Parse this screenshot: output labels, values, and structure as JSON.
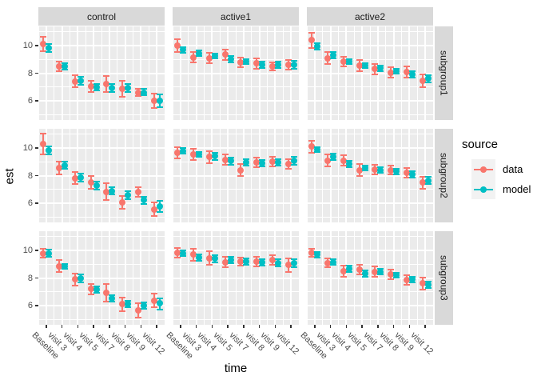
{
  "chart_data": {
    "type": "scatter",
    "title": "",
    "xlabel": "time",
    "ylabel": "est",
    "x_categories": [
      "Baseline",
      "visit 3",
      "visit 4",
      "visit 5",
      "visit 7",
      "visit 8",
      "visit 9",
      "visit 12"
    ],
    "y_ticks": [
      10,
      8,
      6
    ],
    "ylim": [
      4.6,
      11.4
    ],
    "grid": "on",
    "facet_cols": [
      "control",
      "active1",
      "active2"
    ],
    "facet_rows": [
      "subgroup1",
      "subgroup2",
      "subgroup3"
    ],
    "legend": {
      "title": "source",
      "position": "right",
      "items": [
        {
          "label": "data",
          "color": "#F8766D"
        },
        {
          "label": "model",
          "color": "#00BFC4"
        }
      ]
    },
    "colors": {
      "panel_background": "#EBEBEB",
      "strip_background": "#D9D9D9",
      "gridline": "#FFFFFF",
      "axis_text": "#4D4D4D"
    },
    "series_note": "each point is [estimate, ci_low, ci_high] with error bars",
    "panels": [
      {
        "row": "subgroup1",
        "col": "control",
        "data": [
          [
            10.1,
            9.55,
            10.7
          ],
          [
            8.5,
            8.1,
            8.9
          ],
          [
            7.4,
            6.9,
            7.9
          ],
          [
            7.05,
            6.6,
            7.5
          ],
          [
            7.2,
            6.6,
            7.85
          ],
          [
            6.85,
            6.2,
            7.5
          ],
          [
            6.6,
            6.3,
            6.9
          ],
          [
            6.0,
            5.4,
            6.6
          ]
        ],
        "model": [
          [
            9.85,
            9.5,
            10.2
          ],
          [
            8.5,
            8.2,
            8.8
          ],
          [
            7.45,
            7.1,
            7.8
          ],
          [
            7.0,
            6.7,
            7.3
          ],
          [
            6.95,
            6.6,
            7.3
          ],
          [
            6.9,
            6.6,
            7.25
          ],
          [
            6.6,
            6.35,
            6.9
          ],
          [
            6.0,
            5.5,
            6.5
          ]
        ]
      },
      {
        "row": "subgroup1",
        "col": "active1",
        "data": [
          [
            10.0,
            9.5,
            10.5
          ],
          [
            9.15,
            8.7,
            9.6
          ],
          [
            9.1,
            8.65,
            9.55
          ],
          [
            9.35,
            8.9,
            9.8
          ],
          [
            8.8,
            8.4,
            9.2
          ],
          [
            8.7,
            8.25,
            9.15
          ],
          [
            8.5,
            8.15,
            8.85
          ],
          [
            8.6,
            8.2,
            9.0
          ]
        ],
        "model": [
          [
            9.7,
            9.45,
            9.95
          ],
          [
            9.45,
            9.2,
            9.7
          ],
          [
            9.25,
            9.0,
            9.5
          ],
          [
            9.0,
            8.75,
            9.3
          ],
          [
            8.85,
            8.6,
            9.1
          ],
          [
            8.6,
            8.3,
            8.9
          ],
          [
            8.6,
            8.3,
            8.9
          ],
          [
            8.6,
            8.25,
            8.95
          ]
        ]
      },
      {
        "row": "subgroup1",
        "col": "active2",
        "data": [
          [
            10.4,
            9.8,
            11.0
          ],
          [
            9.1,
            8.6,
            9.6
          ],
          [
            8.85,
            8.45,
            9.25
          ],
          [
            8.55,
            8.1,
            9.0
          ],
          [
            8.3,
            7.85,
            8.75
          ],
          [
            8.05,
            7.6,
            8.5
          ],
          [
            8.1,
            7.65,
            8.55
          ],
          [
            7.45,
            6.95,
            7.95
          ]
        ],
        "model": [
          [
            9.95,
            9.65,
            10.25
          ],
          [
            9.3,
            9.0,
            9.6
          ],
          [
            8.85,
            8.6,
            9.1
          ],
          [
            8.55,
            8.3,
            8.8
          ],
          [
            8.35,
            8.1,
            8.6
          ],
          [
            8.15,
            7.9,
            8.4
          ],
          [
            7.9,
            7.6,
            8.2
          ],
          [
            7.6,
            7.3,
            7.9
          ]
        ]
      },
      {
        "row": "subgroup2",
        "col": "control",
        "data": [
          [
            10.3,
            9.5,
            11.1
          ],
          [
            8.55,
            8.05,
            9.05
          ],
          [
            7.8,
            7.35,
            8.3
          ],
          [
            7.5,
            7.0,
            8.05
          ],
          [
            6.8,
            6.15,
            7.5
          ],
          [
            6.05,
            5.55,
            6.55
          ],
          [
            6.8,
            6.4,
            7.2
          ],
          [
            5.55,
            5.0,
            6.1
          ]
        ],
        "model": [
          [
            9.85,
            9.5,
            10.2
          ],
          [
            8.75,
            8.45,
            9.05
          ],
          [
            7.85,
            7.5,
            8.2
          ],
          [
            7.25,
            6.95,
            7.6
          ],
          [
            6.85,
            6.55,
            7.2
          ],
          [
            6.55,
            6.25,
            6.9
          ],
          [
            6.2,
            5.9,
            6.5
          ],
          [
            5.75,
            5.3,
            6.2
          ]
        ]
      },
      {
        "row": "subgroup2",
        "col": "active1",
        "data": [
          [
            9.65,
            9.2,
            10.1
          ],
          [
            9.55,
            9.1,
            10.0
          ],
          [
            9.35,
            8.85,
            9.85
          ],
          [
            9.15,
            8.7,
            9.6
          ],
          [
            8.4,
            7.9,
            8.9
          ],
          [
            8.95,
            8.55,
            9.35
          ],
          [
            9.0,
            8.6,
            9.4
          ],
          [
            8.85,
            8.45,
            9.25
          ]
        ],
        "model": [
          [
            9.8,
            9.55,
            10.05
          ],
          [
            9.55,
            9.3,
            9.8
          ],
          [
            9.4,
            9.1,
            9.7
          ],
          [
            9.05,
            8.75,
            9.35
          ],
          [
            8.95,
            8.65,
            9.25
          ],
          [
            8.9,
            8.6,
            9.2
          ],
          [
            8.95,
            8.65,
            9.25
          ],
          [
            9.05,
            8.7,
            9.4
          ]
        ]
      },
      {
        "row": "subgroup2",
        "col": "active2",
        "data": [
          [
            10.1,
            9.6,
            10.6
          ],
          [
            9.1,
            8.6,
            9.6
          ],
          [
            9.1,
            8.65,
            9.55
          ],
          [
            8.4,
            7.9,
            8.9
          ],
          [
            8.45,
            8.05,
            8.85
          ],
          [
            8.4,
            8.0,
            8.8
          ],
          [
            8.2,
            7.8,
            8.6
          ],
          [
            7.5,
            7.0,
            8.0
          ]
        ],
        "model": [
          [
            9.9,
            9.65,
            10.15
          ],
          [
            9.35,
            9.05,
            9.65
          ],
          [
            8.85,
            8.55,
            9.15
          ],
          [
            8.55,
            8.3,
            8.8
          ],
          [
            8.4,
            8.15,
            8.65
          ],
          [
            8.3,
            8.05,
            8.55
          ],
          [
            8.1,
            7.8,
            8.4
          ],
          [
            7.65,
            7.35,
            7.95
          ]
        ]
      },
      {
        "row": "subgroup3",
        "col": "control",
        "data": [
          [
            9.8,
            9.4,
            10.2
          ],
          [
            8.85,
            8.35,
            9.35
          ],
          [
            7.9,
            7.4,
            8.4
          ],
          [
            7.2,
            6.75,
            7.65
          ],
          [
            6.9,
            6.2,
            7.6
          ],
          [
            6.1,
            5.55,
            6.65
          ],
          [
            5.65,
            5.05,
            6.25
          ],
          [
            6.35,
            5.8,
            6.9
          ]
        ],
        "model": [
          [
            9.8,
            9.5,
            10.1
          ],
          [
            8.85,
            8.6,
            9.1
          ],
          [
            7.95,
            7.65,
            8.3
          ],
          [
            7.15,
            6.85,
            7.45
          ],
          [
            6.5,
            6.2,
            6.8
          ],
          [
            6.1,
            5.8,
            6.4
          ],
          [
            6.0,
            5.7,
            6.3
          ],
          [
            6.15,
            5.65,
            6.6
          ]
        ]
      },
      {
        "row": "subgroup3",
        "col": "active1",
        "data": [
          [
            9.85,
            9.45,
            10.25
          ],
          [
            9.7,
            9.2,
            10.2
          ],
          [
            9.45,
            8.9,
            10.0
          ],
          [
            9.15,
            8.7,
            9.6
          ],
          [
            9.2,
            8.85,
            9.55
          ],
          [
            9.2,
            8.8,
            9.6
          ],
          [
            9.3,
            8.9,
            9.7
          ],
          [
            8.95,
            8.4,
            9.5
          ]
        ],
        "model": [
          [
            9.8,
            9.55,
            10.05
          ],
          [
            9.5,
            9.2,
            9.8
          ],
          [
            9.4,
            9.1,
            9.7
          ],
          [
            9.3,
            9.0,
            9.6
          ],
          [
            9.2,
            8.9,
            9.5
          ],
          [
            9.15,
            8.85,
            9.45
          ],
          [
            9.1,
            8.8,
            9.4
          ],
          [
            9.1,
            8.75,
            9.45
          ]
        ]
      },
      {
        "row": "subgroup3",
        "col": "active2",
        "data": [
          [
            9.85,
            9.5,
            10.2
          ],
          [
            9.1,
            8.7,
            9.5
          ],
          [
            8.5,
            8.05,
            8.95
          ],
          [
            8.6,
            8.2,
            9.0
          ],
          [
            8.45,
            8.0,
            8.9
          ],
          [
            8.25,
            7.85,
            8.65
          ],
          [
            7.85,
            7.45,
            8.25
          ],
          [
            7.6,
            7.1,
            8.1
          ]
        ],
        "model": [
          [
            9.7,
            9.45,
            9.95
          ],
          [
            9.15,
            8.9,
            9.4
          ],
          [
            8.65,
            8.35,
            8.95
          ],
          [
            8.3,
            8.0,
            8.6
          ],
          [
            8.45,
            8.2,
            8.7
          ],
          [
            8.2,
            7.95,
            8.45
          ],
          [
            7.9,
            7.65,
            8.15
          ],
          [
            7.5,
            7.2,
            7.8
          ]
        ]
      }
    ]
  }
}
